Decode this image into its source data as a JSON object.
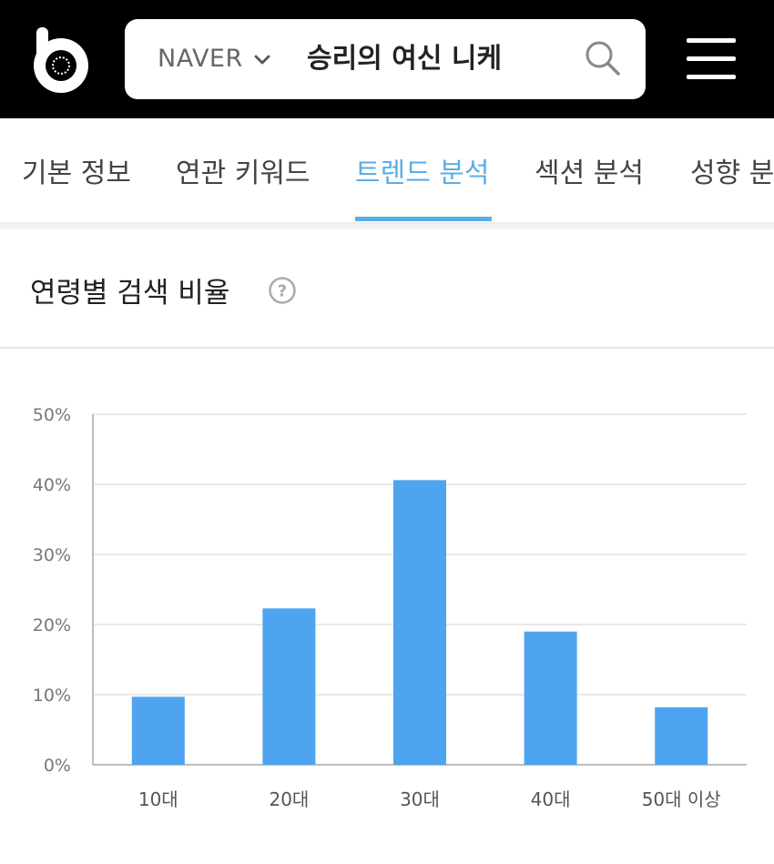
{
  "header": {
    "search": {
      "engine": "NAVER",
      "query": "승리의 여신 니케"
    }
  },
  "tabs": [
    {
      "label": "기본 정보",
      "active": false
    },
    {
      "label": "연관 키워드",
      "active": false
    },
    {
      "label": "트렌드 분석",
      "active": true
    },
    {
      "label": "섹션 분석",
      "active": false
    },
    {
      "label": "성향 분",
      "active": false
    }
  ],
  "section": {
    "title": "연령별 검색 비율"
  },
  "colors": {
    "accent": "#5aaee6",
    "bar": "#4ea4ee",
    "header_bg": "#000000"
  },
  "chart_data": {
    "type": "bar",
    "categories": [
      "10대",
      "20대",
      "30대",
      "40대",
      "50대 이상"
    ],
    "values": [
      9.7,
      22.3,
      40.6,
      19.0,
      8.2
    ],
    "ylim": [
      0,
      50
    ],
    "yticks": [
      "0%",
      "10%",
      "20%",
      "30%",
      "40%",
      "50%"
    ],
    "grid": true
  }
}
